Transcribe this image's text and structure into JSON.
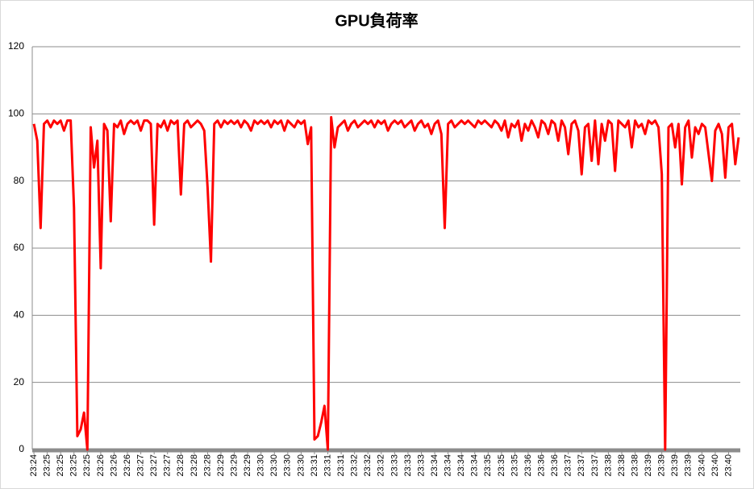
{
  "chart_data": {
    "type": "line",
    "title": "GPU負荷率",
    "color": "#ff0000",
    "categories": [
      "23:24",
      null,
      null,
      null,
      "23:25",
      null,
      null,
      null,
      "23:25",
      null,
      null,
      null,
      "23:25",
      null,
      null,
      null,
      "23:25",
      null,
      null,
      null,
      "23:26",
      null,
      null,
      null,
      "23:26",
      null,
      null,
      null,
      "23:26",
      null,
      null,
      null,
      "23:27",
      null,
      null,
      null,
      "23:27",
      null,
      null,
      null,
      "23:27",
      null,
      null,
      null,
      "23:28",
      null,
      null,
      null,
      "23:28",
      null,
      null,
      null,
      "23:28",
      null,
      null,
      null,
      "23:29",
      null,
      null,
      null,
      "23:29",
      null,
      null,
      null,
      "23:29",
      null,
      null,
      null,
      "23:30",
      null,
      null,
      null,
      "23:30",
      null,
      null,
      null,
      "23:30",
      null,
      null,
      null,
      "23:30",
      null,
      null,
      null,
      "23:31",
      null,
      null,
      null,
      "23:31",
      null,
      null,
      null,
      "23:31",
      null,
      null,
      null,
      "23:32",
      null,
      null,
      null,
      "23:32",
      null,
      null,
      null,
      "23:32",
      null,
      null,
      null,
      "23:33",
      null,
      null,
      null,
      "23:33",
      null,
      null,
      null,
      "23:33",
      null,
      null,
      null,
      "23:34",
      null,
      null,
      null,
      "23:34",
      null,
      null,
      null,
      "23:34",
      null,
      null,
      null,
      "23:34",
      null,
      null,
      null,
      "23:35",
      null,
      null,
      null,
      "23:35",
      null,
      null,
      null,
      "23:35",
      null,
      null,
      null,
      "23:36",
      null,
      null,
      null,
      "23:36",
      null,
      null,
      null,
      "23:36",
      null,
      null,
      null,
      "23:37",
      null,
      null,
      null,
      "23:37",
      null,
      null,
      null,
      "23:37",
      null,
      null,
      null,
      "23:38",
      null,
      null,
      null,
      "23:38",
      null,
      null,
      null,
      "23:38",
      null,
      null,
      null,
      "23:39",
      null,
      null,
      null,
      "23:39",
      null,
      null,
      null,
      "23:39",
      null,
      null,
      null,
      "23:39",
      null,
      null,
      null,
      "23:40",
      null,
      null,
      null,
      "23:40",
      null,
      null,
      null,
      "23:40",
      null,
      null,
      null
    ],
    "values": [
      97,
      92,
      66,
      97,
      98,
      96,
      98,
      97,
      98,
      95,
      98,
      98,
      72,
      4,
      6,
      11,
      0,
      96,
      84,
      92,
      54,
      97,
      95,
      68,
      97,
      96,
      98,
      94,
      97,
      98,
      97,
      98,
      95,
      98,
      98,
      97,
      67,
      97,
      96,
      98,
      95,
      98,
      97,
      98,
      76,
      97,
      98,
      96,
      97,
      98,
      97,
      95,
      78,
      56,
      97,
      98,
      96,
      98,
      97,
      98,
      97,
      98,
      96,
      98,
      97,
      95,
      98,
      97,
      98,
      97,
      98,
      96,
      98,
      97,
      98,
      95,
      98,
      97,
      96,
      98,
      97,
      98,
      91,
      96,
      3,
      4,
      8,
      13,
      0,
      99,
      90,
      96,
      97,
      98,
      95,
      97,
      98,
      96,
      97,
      98,
      97,
      98,
      96,
      98,
      97,
      98,
      95,
      97,
      98,
      97,
      98,
      96,
      97,
      98,
      95,
      97,
      98,
      96,
      97,
      94,
      97,
      98,
      94,
      66,
      97,
      98,
      96,
      97,
      98,
      97,
      98,
      97,
      96,
      98,
      97,
      98,
      97,
      96,
      98,
      97,
      95,
      98,
      93,
      97,
      96,
      98,
      92,
      97,
      95,
      98,
      96,
      93,
      98,
      97,
      94,
      98,
      97,
      92,
      98,
      96,
      88,
      97,
      98,
      95,
      82,
      96,
      97,
      86,
      98,
      85,
      97,
      92,
      98,
      97,
      83,
      98,
      97,
      96,
      98,
      90,
      98,
      96,
      97,
      94,
      98,
      97,
      98,
      96,
      82,
      0,
      96,
      97,
      90,
      97,
      79,
      96,
      98,
      87,
      96,
      94,
      97,
      96,
      88,
      80,
      95,
      97,
      94,
      81,
      96,
      97,
      85,
      93
    ],
    "ylim": [
      0,
      120
    ],
    "yticks": [
      0,
      20,
      40,
      60,
      80,
      100,
      120
    ],
    "grid": true
  }
}
